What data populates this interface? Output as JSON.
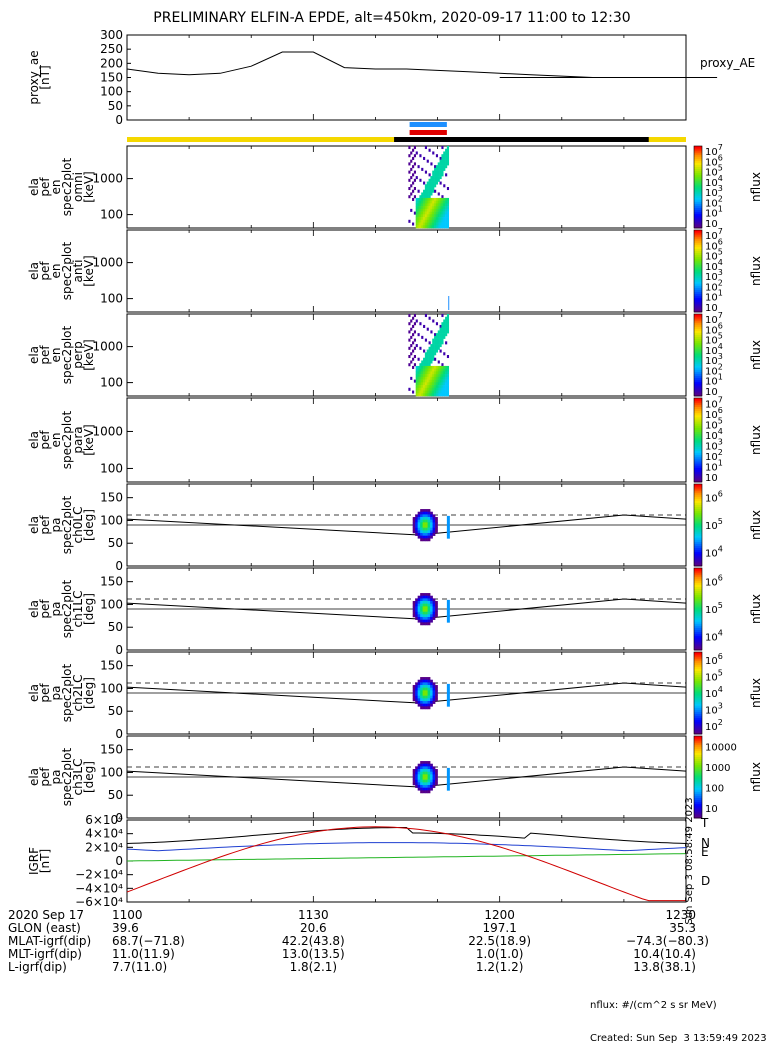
{
  "title": "PRELIMINARY ELFIN-A EPDE, alt=450km, 2020-09-17 11:00 to 12:30",
  "colors": {
    "ae_bar": "#f5d800",
    "night_bar": "#000000",
    "blue_marker": "#1e90ff",
    "red_marker": "#e00000",
    "grf_T": "#000000",
    "grf_N": "#1f3fd0",
    "grf_E": "#21b321",
    "grf_D": "#d00000"
  },
  "chart_data": [
    {
      "id": "ae",
      "type": "line",
      "ylabel": "proxy_ae\n[nT]",
      "legend": "proxy_AE",
      "ylim": [
        0,
        300
      ],
      "yticks": [
        "0",
        "50",
        "100",
        "150",
        "200",
        "250",
        "300"
      ],
      "x": [
        1100,
        1105,
        1110,
        1115,
        1120,
        1125,
        1130,
        1135,
        1140,
        1145,
        1150,
        1155,
        1160,
        1165,
        1170,
        1175,
        1180,
        1185,
        1190,
        1195,
        1200,
        1205,
        1210,
        1215,
        1220,
        1225,
        1230
      ],
      "y": [
        180,
        165,
        160,
        165,
        190,
        240,
        240,
        185,
        180,
        180,
        175,
        170,
        165,
        160,
        155,
        150,
        150,
        150,
        150,
        150,
        150,
        150,
        150,
        150,
        150,
        150,
        150
      ]
    },
    {
      "id": "en_omni",
      "type": "heatmap",
      "ylabel": "ela\npef\nen\nspec2plot\nomni\n[keV]",
      "yticks": [
        "100",
        "1000"
      ],
      "colorbar": {
        "label": "nflux",
        "ticks": [
          "10",
          "10^1",
          "10^2",
          "10^3",
          "10^4",
          "10^5",
          "10^6",
          "10^7"
        ]
      }
    },
    {
      "id": "en_anti",
      "type": "heatmap",
      "ylabel": "ela\npef\nen\nspec2plot\nanti\n[keV]",
      "yticks": [
        "100",
        "1000"
      ],
      "colorbar": {
        "label": "nflux",
        "ticks": [
          "10",
          "10^1",
          "10^2",
          "10^3",
          "10^4",
          "10^5",
          "10^6",
          "10^7"
        ]
      }
    },
    {
      "id": "en_perp",
      "type": "heatmap",
      "ylabel": "ela\npef\nen\nspec2plot\nperp\n[keV]",
      "yticks": [
        "100",
        "1000"
      ],
      "colorbar": {
        "label": "nflux",
        "ticks": [
          "10",
          "10^1",
          "10^2",
          "10^3",
          "10^4",
          "10^5",
          "10^6",
          "10^7"
        ]
      }
    },
    {
      "id": "en_para",
      "type": "heatmap",
      "ylabel": "ela\npef\nen\nspec2plot\npara\n[keV]",
      "yticks": [
        "100",
        "1000"
      ],
      "colorbar": {
        "label": "nflux",
        "ticks": [
          "10",
          "10^1",
          "10^2",
          "10^3",
          "10^4",
          "10^5",
          "10^6",
          "10^7"
        ]
      }
    },
    {
      "id": "pa_ch0",
      "type": "heatmap",
      "ylabel": "ela\npef\npa\nspec2plot\nch0LC\n[deg]",
      "ylim": [
        0,
        180
      ],
      "yticks": [
        "0",
        "50",
        "100",
        "150"
      ],
      "colorbar": {
        "label": "nflux",
        "ticks": [
          "10^4",
          "10^5",
          "10^6"
        ]
      }
    },
    {
      "id": "pa_ch1",
      "type": "heatmap",
      "ylabel": "ela\npef\npa\nspec2plot\nch1LC\n[deg]",
      "ylim": [
        0,
        180
      ],
      "yticks": [
        "0",
        "50",
        "100",
        "150"
      ],
      "colorbar": {
        "label": "nflux",
        "ticks": [
          "10^4",
          "10^5",
          "10^6"
        ]
      }
    },
    {
      "id": "pa_ch2",
      "type": "heatmap",
      "ylabel": "ela\npef\npa\nspec2plot\nch2LC\n[deg]",
      "ylim": [
        0,
        180
      ],
      "yticks": [
        "0",
        "50",
        "100",
        "150"
      ],
      "colorbar": {
        "label": "nflux",
        "ticks": [
          "10^2",
          "10^3",
          "10^4",
          "10^5",
          "10^6"
        ]
      }
    },
    {
      "id": "pa_ch3",
      "type": "heatmap",
      "ylabel": "ela\npef\npa\nspec2plot\nch3LC\n[deg]",
      "ylim": [
        0,
        180
      ],
      "yticks": [
        "0",
        "50",
        "100",
        "150"
      ],
      "colorbar": {
        "label": "nflux",
        "ticks": [
          "10",
          "100",
          "1000",
          "10000"
        ]
      }
    },
    {
      "id": "igrf",
      "type": "line",
      "ylabel": "IGRF\n[nT]",
      "ylim": [
        -60000,
        60000
      ],
      "yticks": [
        "−6×10⁴",
        "−4×10⁴",
        "−2×10⁴",
        "0",
        "2×10⁴",
        "4×10⁴",
        "6×10⁴"
      ],
      "series": [
        {
          "name": "T"
        },
        {
          "name": "N"
        },
        {
          "name": "E"
        },
        {
          "name": "D"
        }
      ]
    }
  ],
  "xaxis": {
    "ticks": [
      "1100",
      "1130",
      "1200",
      "1230"
    ],
    "rows": [
      {
        "label": "2020 Sep 17",
        "values": [
          "1100",
          "1130",
          "1200",
          "1230"
        ]
      },
      {
        "label": "GLON (east)",
        "values": [
          "39.6",
          "20.6",
          "197.1",
          "35.3"
        ]
      },
      {
        "label": "MLAT-igrf(dip)",
        "values": [
          "68.7(−71.8)",
          "42.2(43.8)",
          "22.5(18.9)",
          "−74.3(−80.3)"
        ]
      },
      {
        "label": "MLT-igrf(dip)",
        "values": [
          "11.0(11.9)",
          "13.0(13.5)",
          "1.0(1.0)",
          "10.4(10.4)"
        ]
      },
      {
        "label": "L-igrf(dip)",
        "values": [
          "7.7(11.0)",
          "1.8(2.1)",
          "1.2(1.2)",
          "13.8(38.1)"
        ]
      }
    ]
  },
  "footer": {
    "units": "nflux: #/(cm^2 s sr MeV)",
    "created": "Created: Sun Sep  3 13:59:49 2023",
    "side_stamp": "Sun Sep  3 08:58:49 2023"
  }
}
